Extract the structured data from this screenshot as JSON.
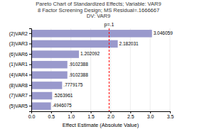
{
  "chart_data": {
    "type": "bar",
    "orientation": "horizontal",
    "title": "Pareto Chart of Standardized Effects; Variable: VAR9",
    "subtitle": [
      "8 Factor Screening Design; MS Residual=.1666667",
      "DV: VAR9"
    ],
    "categories": [
      "(2)VAR2",
      "(3)VAR3",
      "(6)VAR6",
      "(1)VAR1",
      "(4)VAR4",
      "(8)VAR8",
      "(7)VAR7",
      "(5)VAR5"
    ],
    "values": [
      3.046059,
      2.182031,
      1.202092,
      0.9102388,
      0.9102388,
      0.7779175,
      0.5263961,
      0.4946075
    ],
    "value_labels": [
      "3.046059",
      "2.182031",
      "1.202092",
      ".9102388",
      ".9102388",
      ".7779175",
      ".5263961",
      ".4946075"
    ],
    "data_labels": true,
    "color": "#9999cc",
    "reference_lines": [
      {
        "value": 1.963971,
        "label": "p=.1",
        "color": "red",
        "line_style": "dashed"
      }
    ],
    "xlabel": "Effect Estimate (Absolute Value)",
    "xlim": [
      0,
      3.5
    ],
    "xticks": [
      {
        "value": 0,
        "label": "0.0"
      },
      0.5,
      {
        "value": 1,
        "label": "1.0"
      },
      1.5,
      {
        "value": 2,
        "label": "2.0"
      },
      2.5,
      {
        "value": 3,
        "label": "3.0"
      },
      3.5
    ],
    "grid": true
  }
}
